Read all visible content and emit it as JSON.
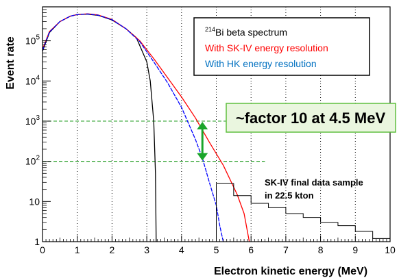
{
  "chart_data": {
    "type": "line",
    "title": "",
    "xlabel": "Electron kinetic energy (MeV)",
    "ylabel": "Event rate",
    "xlim": [
      0,
      10
    ],
    "ylim": [
      1,
      700000
    ],
    "yscale": "log",
    "x_ticks": [
      "0",
      "1",
      "2",
      "3",
      "4",
      "5",
      "6",
      "7",
      "8",
      "9",
      "10"
    ],
    "y_ticks": [
      {
        "value": 1,
        "label": "1"
      },
      {
        "value": 10,
        "label": "10"
      },
      {
        "value": 100,
        "label": "10",
        "exp": "2"
      },
      {
        "value": 1000,
        "label": "10",
        "exp": "3"
      },
      {
        "value": 10000,
        "label": "10",
        "exp": "4"
      },
      {
        "value": 100000,
        "label": "10",
        "exp": "5"
      }
    ],
    "grid": {
      "x": true,
      "x_style": "dotted",
      "y": false
    },
    "series": [
      {
        "name": "²¹⁴Bi beta spectrum",
        "color": "#000000",
        "x": [
          0,
          0.2,
          0.5,
          0.8,
          1.0,
          1.3,
          1.6,
          2.0,
          2.4,
          2.7,
          3.0,
          3.1,
          3.2,
          3.25,
          3.27
        ],
        "y": [
          55000,
          160000,
          300000,
          410000,
          450000,
          460000,
          430000,
          330000,
          200000,
          120000,
          30000,
          10000,
          1000,
          50,
          1
        ]
      },
      {
        "name": "With SK-IV energy resolution",
        "color": "#ff0000",
        "x": [
          0,
          0.2,
          0.5,
          0.8,
          1.0,
          1.3,
          1.6,
          2.0,
          2.4,
          2.8,
          3.2,
          3.6,
          4.0,
          4.4,
          4.8,
          5.2,
          5.6,
          5.8,
          5.95
        ],
        "y": [
          62000,
          170000,
          300000,
          410000,
          450000,
          470000,
          440000,
          340000,
          200000,
          100000,
          36000,
          12000,
          4000,
          1200,
          300,
          80,
          15,
          5,
          1
        ]
      },
      {
        "name": "With HK energy resolution",
        "color": "#0000ff",
        "x": [
          0,
          0.2,
          0.5,
          0.8,
          1.0,
          1.3,
          1.6,
          2.0,
          2.4,
          2.8,
          3.2,
          3.6,
          4.0,
          4.4,
          4.6,
          4.8,
          5.0,
          5.1,
          5.2
        ],
        "y": [
          58000,
          165000,
          300000,
          410000,
          450000,
          465000,
          435000,
          335000,
          200000,
          95000,
          30000,
          9000,
          2200,
          350,
          120,
          30,
          8,
          2.5,
          1
        ]
      },
      {
        "name": "SK-IV final data sample in 22.5 kton",
        "color": "#000000",
        "type": "step",
        "bin_edges": [
          5.0,
          5.5,
          6.0,
          6.5,
          7.0,
          7.5,
          8.0,
          8.5,
          9.0,
          9.5,
          10.0
        ],
        "values": [
          28,
          14,
          9,
          7,
          5,
          4,
          3,
          2.5,
          1.8,
          1.2
        ]
      }
    ],
    "reference_lines": [
      {
        "axis": "y",
        "value": 1000,
        "x_range": [
          0,
          6.4
        ],
        "color": "#2ca02c",
        "style": "dashed"
      },
      {
        "axis": "y",
        "value": 100,
        "x_range": [
          0,
          6.4
        ],
        "color": "#2ca02c",
        "style": "dashed"
      }
    ],
    "annotations": [
      {
        "type": "double-arrow",
        "x": 4.6,
        "y_from": 100,
        "y_to": 1000,
        "color": "#1aa52a"
      },
      {
        "type": "callout",
        "text": "~factor 10 at 4.5 MeV",
        "background": "#eaf6df",
        "border": "#5fbf3f"
      },
      {
        "type": "text",
        "lines": [
          "SK-IV final data sample",
          "in 22.5 kton"
        ]
      }
    ],
    "legend": {
      "position": "top-right",
      "entries": [
        {
          "prefix": "214",
          "text": "Bi beta spectrum",
          "color": "#000000"
        },
        {
          "prefix": "",
          "text": "With SK-IV energy resolution",
          "color": "#ff0000"
        },
        {
          "prefix": "",
          "text": "With HK energy resolution",
          "color": "#0070c0"
        }
      ]
    }
  }
}
